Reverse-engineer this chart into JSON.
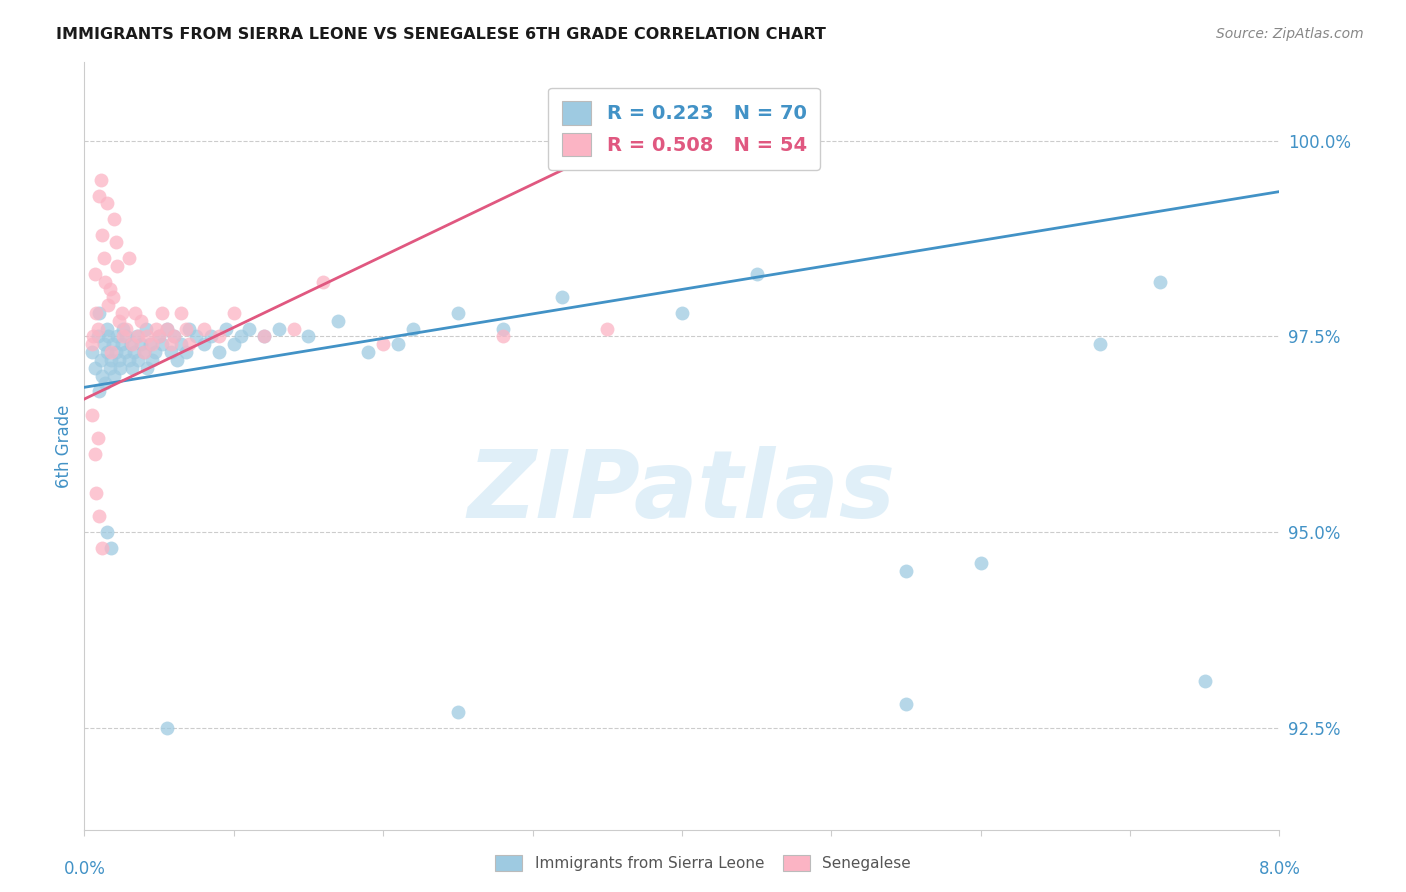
{
  "title": "IMMIGRANTS FROM SIERRA LEONE VS SENEGALESE 6TH GRADE CORRELATION CHART",
  "source": "Source: ZipAtlas.com",
  "ylabel": "6th Grade",
  "watermark": "ZIPatlas",
  "xlim": [
    0.0,
    8.0
  ],
  "ylim": [
    91.2,
    101.0
  ],
  "yticks": [
    92.5,
    95.0,
    97.5,
    100.0
  ],
  "ytick_labels": [
    "92.5%",
    "95.0%",
    "97.5%",
    "100.0%"
  ],
  "legend1_r": "0.223",
  "legend1_n": "70",
  "legend2_r": "0.508",
  "legend2_n": "54",
  "legend1_label": "Immigrants from Sierra Leone",
  "legend2_label": "Senegalese",
  "blue_color": "#9ecae1",
  "pink_color": "#fbb4c4",
  "blue_line_color": "#4292c6",
  "pink_line_color": "#e05880",
  "axis_label_color": "#4292c6",
  "title_color": "#1a1a1a",
  "blue_points_x": [
    0.05,
    0.07,
    0.09,
    0.1,
    0.1,
    0.11,
    0.12,
    0.13,
    0.14,
    0.15,
    0.15,
    0.16,
    0.17,
    0.18,
    0.19,
    0.2,
    0.21,
    0.22,
    0.23,
    0.24,
    0.25,
    0.26,
    0.27,
    0.28,
    0.3,
    0.31,
    0.32,
    0.33,
    0.35,
    0.36,
    0.38,
    0.4,
    0.41,
    0.42,
    0.44,
    0.45,
    0.47,
    0.5,
    0.52,
    0.55,
    0.58,
    0.6,
    0.62,
    0.65,
    0.68,
    0.7,
    0.75,
    0.8,
    0.85,
    0.9,
    0.95,
    1.0,
    1.05,
    1.1,
    1.2,
    1.3,
    1.5,
    1.7,
    2.2,
    2.5,
    3.2,
    4.0,
    4.5,
    5.5,
    6.0,
    6.8,
    7.2,
    2.8,
    2.1,
    1.9
  ],
  "blue_points_y": [
    97.3,
    97.1,
    97.5,
    96.8,
    97.8,
    97.2,
    97.0,
    97.4,
    96.9,
    97.6,
    97.3,
    97.5,
    97.1,
    97.2,
    97.4,
    97.0,
    97.3,
    97.5,
    97.2,
    97.1,
    97.4,
    97.6,
    97.3,
    97.5,
    97.2,
    97.4,
    97.1,
    97.3,
    97.5,
    97.2,
    97.4,
    97.3,
    97.6,
    97.1,
    97.4,
    97.2,
    97.3,
    97.5,
    97.4,
    97.6,
    97.3,
    97.5,
    97.2,
    97.4,
    97.3,
    97.6,
    97.5,
    97.4,
    97.5,
    97.3,
    97.6,
    97.4,
    97.5,
    97.6,
    97.5,
    97.6,
    97.5,
    97.7,
    97.6,
    97.8,
    98.0,
    97.8,
    98.3,
    94.5,
    94.6,
    97.4,
    98.2,
    97.6,
    97.4,
    97.3
  ],
  "blue_outlier_x": [
    0.15,
    0.18,
    0.55,
    2.5,
    5.5,
    7.5
  ],
  "blue_outlier_y": [
    95.0,
    94.8,
    92.5,
    92.7,
    92.8,
    93.1
  ],
  "pink_points_x": [
    0.05,
    0.06,
    0.07,
    0.08,
    0.09,
    0.1,
    0.11,
    0.12,
    0.13,
    0.14,
    0.15,
    0.16,
    0.17,
    0.18,
    0.19,
    0.2,
    0.21,
    0.22,
    0.23,
    0.25,
    0.26,
    0.28,
    0.3,
    0.32,
    0.34,
    0.36,
    0.38,
    0.4,
    0.42,
    0.45,
    0.48,
    0.5,
    0.52,
    0.55,
    0.58,
    0.6,
    0.65,
    0.68,
    0.7,
    0.8,
    0.9,
    1.0,
    1.2,
    1.4,
    1.6,
    2.0,
    2.8,
    3.5,
    0.05,
    0.1,
    0.12,
    0.07,
    0.08,
    0.09
  ],
  "pink_points_y": [
    97.4,
    97.5,
    98.3,
    97.8,
    97.6,
    99.3,
    99.5,
    98.8,
    98.5,
    98.2,
    99.2,
    97.9,
    98.1,
    97.3,
    98.0,
    99.0,
    98.7,
    98.4,
    97.7,
    97.8,
    97.5,
    97.6,
    98.5,
    97.4,
    97.8,
    97.5,
    97.7,
    97.3,
    97.5,
    97.4,
    97.6,
    97.5,
    97.8,
    97.6,
    97.4,
    97.5,
    97.8,
    97.6,
    97.4,
    97.6,
    97.5,
    97.8,
    97.5,
    97.6,
    98.2,
    97.4,
    97.5,
    97.6,
    96.5,
    95.2,
    94.8,
    96.0,
    95.5,
    96.2
  ],
  "blue_trend_x": [
    0.0,
    8.0
  ],
  "blue_trend_y": [
    96.85,
    99.35
  ],
  "pink_trend_x": [
    0.0,
    3.5
  ],
  "pink_trend_y": [
    96.7,
    99.9
  ]
}
